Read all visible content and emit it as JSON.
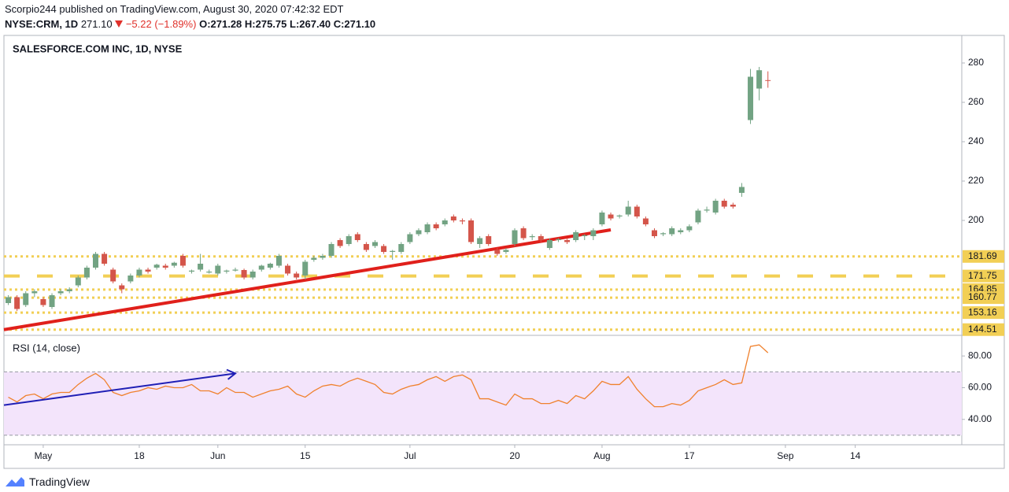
{
  "header": {
    "publisher": "Scorpio244 published on TradingView.com, August 30, 2020 07:42:32 EDT",
    "symbol": "NYSE:CRM, 1D",
    "last": "271.10",
    "change": "−5.22 (−1.89%)",
    "ohlc": [
      "O:271.28",
      "H:275.75",
      "L:267.40",
      "C:271.10"
    ]
  },
  "chart_data": [
    {
      "type": "candlestick",
      "title": "SALESFORCE.COM INC, 1D, NYSE",
      "x": [
        0,
        1,
        2,
        3,
        4,
        5,
        6,
        7,
        8,
        9,
        10,
        11,
        12,
        13,
        14,
        15,
        16,
        17,
        18,
        19,
        20,
        21,
        22,
        23,
        24,
        25,
        26,
        27,
        28,
        29,
        30,
        31,
        32,
        33,
        34,
        35,
        36,
        37,
        38,
        39,
        40,
        41,
        42,
        43,
        44,
        45,
        46,
        47,
        48,
        49,
        50,
        51,
        52,
        53,
        54,
        55,
        56,
        57,
        58,
        59,
        60,
        61,
        62,
        63,
        64,
        65,
        66,
        67,
        68,
        69,
        70,
        71,
        72,
        73,
        74,
        75,
        76,
        77,
        78,
        79,
        80,
        81,
        82,
        83,
        84,
        85,
        86,
        87
      ],
      "open": [
        158,
        161,
        157,
        163,
        160,
        156,
        163,
        164,
        167,
        171,
        176,
        183,
        175,
        167,
        169,
        172,
        175,
        176,
        177,
        177,
        182,
        174,
        175,
        173.5,
        173,
        174,
        174.5,
        174.8,
        171,
        175,
        176,
        177,
        177,
        173,
        172,
        180,
        181,
        182,
        190,
        188,
        193,
        188,
        187,
        187,
        184,
        184,
        189,
        193,
        194,
        198,
        198,
        202,
        200,
        200,
        188,
        192,
        185,
        184,
        188,
        196,
        191.5,
        192,
        186,
        190,
        190,
        190,
        192,
        192,
        198,
        203,
        202,
        203,
        207,
        201,
        195,
        193,
        193,
        194,
        195,
        199,
        205,
        204,
        210,
        208,
        214,
        251,
        267,
        271.28
      ],
      "high": [
        162,
        162,
        164,
        165,
        161,
        163,
        165,
        166,
        172,
        177,
        184,
        184,
        176,
        168,
        173,
        176,
        176,
        178,
        178,
        179,
        183,
        175,
        183,
        175,
        178,
        175,
        176,
        175.5,
        175,
        177.5,
        178.5,
        183,
        178,
        174,
        180,
        182,
        183,
        189,
        191,
        193,
        194,
        189,
        190,
        188,
        185,
        189,
        194,
        196,
        199,
        199,
        201,
        203,
        201,
        201,
        192,
        193,
        186,
        186,
        196,
        197,
        193,
        193,
        191,
        191,
        191,
        195,
        193,
        196,
        205,
        204,
        203,
        210,
        208,
        202,
        196,
        194,
        197,
        196,
        198,
        206,
        207,
        211,
        211,
        209,
        219,
        277,
        278,
        275.75
      ],
      "low": [
        157,
        154,
        156,
        161,
        156,
        155,
        162,
        163,
        166,
        170,
        175,
        177,
        168,
        163,
        168,
        171,
        173,
        175,
        175,
        176,
        176,
        173,
        174,
        173,
        172,
        173,
        174,
        170,
        170,
        174,
        175,
        176,
        172,
        170,
        170,
        179,
        180,
        181,
        186,
        187,
        189,
        184,
        186,
        183,
        180,
        183,
        188,
        192,
        193,
        195,
        197,
        199,
        198,
        188,
        186,
        187,
        182,
        183,
        187,
        190,
        190,
        189,
        185,
        189,
        188,
        189,
        190,
        190,
        197,
        200,
        201,
        202,
        201,
        197,
        191,
        192,
        192,
        193,
        194,
        198,
        204,
        203,
        206,
        206,
        212,
        249,
        261,
        267.4
      ],
      "close": [
        161,
        155,
        163,
        164,
        157,
        162,
        164,
        165,
        171,
        176,
        183,
        178,
        169,
        165,
        172,
        175,
        174,
        177.5,
        176,
        178.5,
        177,
        174.5,
        178,
        174,
        177,
        174.5,
        175,
        171,
        174,
        177,
        178,
        182,
        173,
        171,
        179,
        181,
        182,
        188,
        187,
        192,
        190,
        185,
        189,
        184,
        184.5,
        188,
        193,
        195,
        198,
        196,
        200,
        200,
        199.5,
        189,
        191,
        188,
        183,
        185,
        195,
        191,
        192,
        190,
        190,
        190.5,
        189,
        194,
        192.5,
        195,
        204,
        201,
        202.5,
        207,
        202,
        198,
        192,
        193.5,
        196,
        195,
        197,
        205,
        205.5,
        210,
        207,
        207,
        217,
        273,
        276.32,
        271.1
      ],
      "up_color": "#72a383",
      "down_color": "#d4554a",
      "xlim": [
        -0.5,
        109.2
      ],
      "ylim": [
        142,
        294
      ],
      "xticks": [
        {
          "value": 4,
          "label": "May"
        },
        {
          "value": 15,
          "label": "18"
        },
        {
          "value": 24,
          "label": "Jun"
        },
        {
          "value": 34,
          "label": "15"
        },
        {
          "value": 46,
          "label": "Jul"
        },
        {
          "value": 58,
          "label": "20"
        },
        {
          "value": 68,
          "label": "Aug"
        },
        {
          "value": 78,
          "label": "17"
        },
        {
          "value": 89,
          "label": "Sep"
        },
        {
          "value": 97,
          "label": "14"
        }
      ],
      "yticks": [
        200,
        220,
        240,
        260,
        280
      ],
      "levels": [
        {
          "value": 181.69,
          "style": "dotted"
        },
        {
          "value": 171.75,
          "style": "dashed"
        },
        {
          "value": 164.85,
          "style": "dotted"
        },
        {
          "value": 160.77,
          "style": "dotted"
        },
        {
          "value": 153.16,
          "style": "dotted"
        },
        {
          "value": 144.51,
          "style": "dotted"
        }
      ],
      "level_color": "#f2cf55",
      "trendline": {
        "x": [
          -0.5,
          69
        ],
        "y": [
          144.5,
          195.2
        ],
        "color": "#e0201b"
      }
    },
    {
      "type": "line",
      "title": "RSI (14, close)",
      "x": [
        0,
        1,
        2,
        3,
        4,
        5,
        6,
        7,
        8,
        9,
        10,
        11,
        12,
        13,
        14,
        15,
        16,
        17,
        18,
        19,
        20,
        21,
        22,
        23,
        24,
        25,
        26,
        27,
        28,
        29,
        30,
        31,
        32,
        33,
        34,
        35,
        36,
        37,
        38,
        39,
        40,
        41,
        42,
        43,
        44,
        45,
        46,
        47,
        48,
        49,
        50,
        51,
        52,
        53,
        54,
        55,
        56,
        57,
        58,
        59,
        60,
        61,
        62,
        63,
        64,
        65,
        66,
        67,
        68,
        69,
        70,
        71,
        72,
        73,
        74,
        75,
        76,
        77,
        78,
        79,
        80,
        81,
        82,
        83,
        84,
        85,
        86,
        87
      ],
      "values": [
        54,
        51,
        55,
        56,
        53,
        56,
        57,
        57,
        62,
        66,
        69,
        65,
        57,
        55,
        57,
        58,
        60,
        59,
        61,
        60,
        60,
        62,
        58,
        58,
        56,
        60,
        57,
        57,
        54,
        56,
        58,
        59,
        61,
        56,
        54,
        58,
        61,
        62,
        61,
        64,
        66,
        64,
        62,
        57,
        56,
        59,
        61,
        62,
        65,
        67,
        64,
        67,
        68,
        65,
        53,
        53,
        51,
        49,
        56,
        53,
        53,
        50,
        50,
        52,
        50,
        55,
        53,
        58,
        64,
        62,
        62,
        67,
        59,
        53,
        48,
        48,
        50,
        49,
        52,
        58,
        60,
        62,
        65,
        62,
        63,
        86,
        87,
        82
      ],
      "color": "#f0812d",
      "band": [
        30,
        70
      ],
      "band_color": "#f3e4fb",
      "xlim": [
        -0.5,
        109.2
      ],
      "ylim": [
        24,
        92.5
      ],
      "yticks": [
        {
          "value": 40,
          "label": "40.00"
        },
        {
          "value": 60,
          "label": "60.00"
        },
        {
          "value": 80,
          "label": "80.00"
        }
      ],
      "arrow": {
        "x": [
          -0.5,
          26
        ],
        "y": [
          49,
          69
        ],
        "color": "#1f1fb5"
      }
    }
  ],
  "footer": {
    "brand": "TradingView"
  }
}
